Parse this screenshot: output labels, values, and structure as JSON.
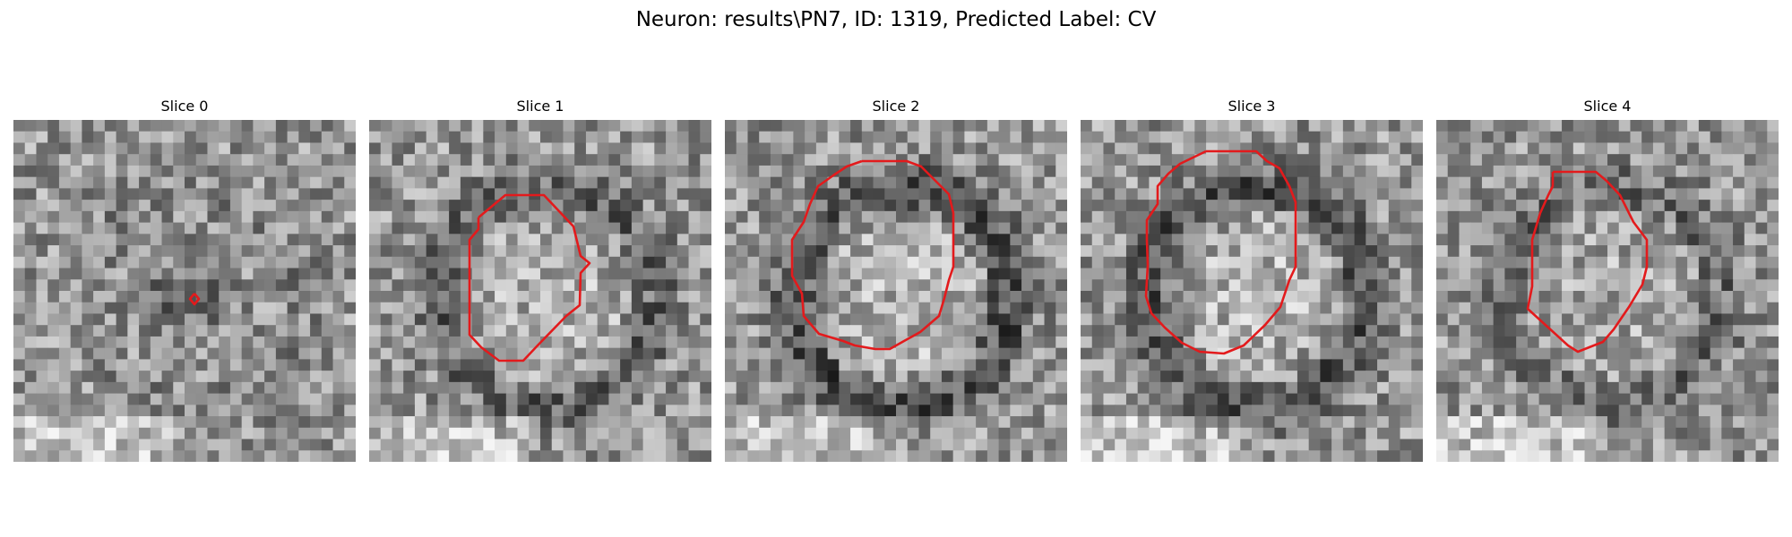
{
  "figure": {
    "title": "Neuron: results\\PN7, ID: 1319, Predicted Label: CV",
    "colormap": "gray",
    "outline_color": "#e31a1c",
    "background_color": "#ffffff"
  },
  "slices": [
    {
      "label": "Slice 0",
      "seed": 11,
      "light_blob": 0,
      "dark_ring": 0.2
    },
    {
      "label": "Slice 1",
      "seed": 23,
      "light_blob": 0.9,
      "dark_ring": 0.7
    },
    {
      "label": "Slice 2",
      "seed": 37,
      "light_blob": 1,
      "dark_ring": 1
    },
    {
      "label": "Slice 3",
      "seed": 41,
      "light_blob": 1,
      "dark_ring": 1
    },
    {
      "label": "Slice 4",
      "seed": 53,
      "light_blob": 0.6,
      "dark_ring": 0.6
    }
  ]
}
